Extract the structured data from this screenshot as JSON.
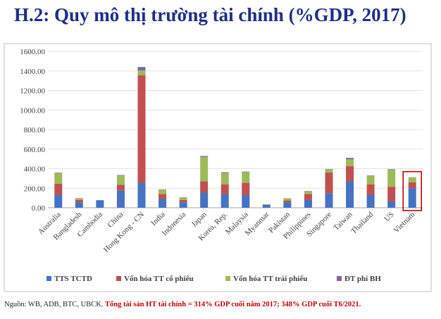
{
  "page": {
    "title": "H.2: Quy mô thị trường tài chính (%GDP, 2017)",
    "source_prefix": "Nguồn: WB, ADB, BTC, UBCK.",
    "source_highlight": "Tổng tài sản HT tài chính = 314% GDP cuối năm 2017; 348% GDP cuối T6/2021."
  },
  "chart_data": {
    "type": "bar",
    "stacked": true,
    "categories": [
      "Australia",
      "Bangladesh",
      "Cambodia",
      "China",
      "Hong Kong - CN",
      "India",
      "Indonesia",
      "Japan",
      "Korea, Rep.",
      "Malaysia",
      "Myanmar",
      "Pakistan",
      "Philippines",
      "Singapore",
      "Taiwan",
      "Thailand",
      "US",
      "Vietnam"
    ],
    "series": [
      {
        "name": "TTS TCTD",
        "color": "#4472c4",
        "values": [
          130,
          55,
          75,
          175,
          255,
          90,
          55,
          155,
          140,
          130,
          30,
          55,
          80,
          150,
          270,
          130,
          65,
          200
        ]
      },
      {
        "name": "Vốn hóa TT cổ phiếu",
        "color": "#c0504d",
        "values": [
          115,
          25,
          0,
          60,
          1100,
          50,
          25,
          115,
          100,
          125,
          0,
          20,
          60,
          210,
          155,
          110,
          150,
          60
        ]
      },
      {
        "name": "Vốn hóa TT trái phiếu",
        "color": "#9bbb59",
        "values": [
          110,
          15,
          0,
          95,
          50,
          45,
          25,
          250,
          115,
          110,
          5,
          20,
          30,
          30,
          70,
          85,
          175,
          50
        ]
      },
      {
        "name": "ĐT phí BH",
        "color": "#8064a2",
        "values": [
          5,
          3,
          3,
          5,
          35,
          3,
          2,
          10,
          8,
          5,
          1,
          2,
          2,
          5,
          15,
          5,
          5,
          2
        ]
      }
    ],
    "ylim": [
      0,
      1600
    ],
    "yticks": [
      "0.00",
      "200.00",
      "400.00",
      "600.00",
      "800.00",
      "1000.00",
      "1200.00",
      "1400.00",
      "1600.00"
    ],
    "grid": true,
    "legend_position": "bottom",
    "highlighted_category": "Vietnam",
    "highlight_color": "#c00000"
  }
}
